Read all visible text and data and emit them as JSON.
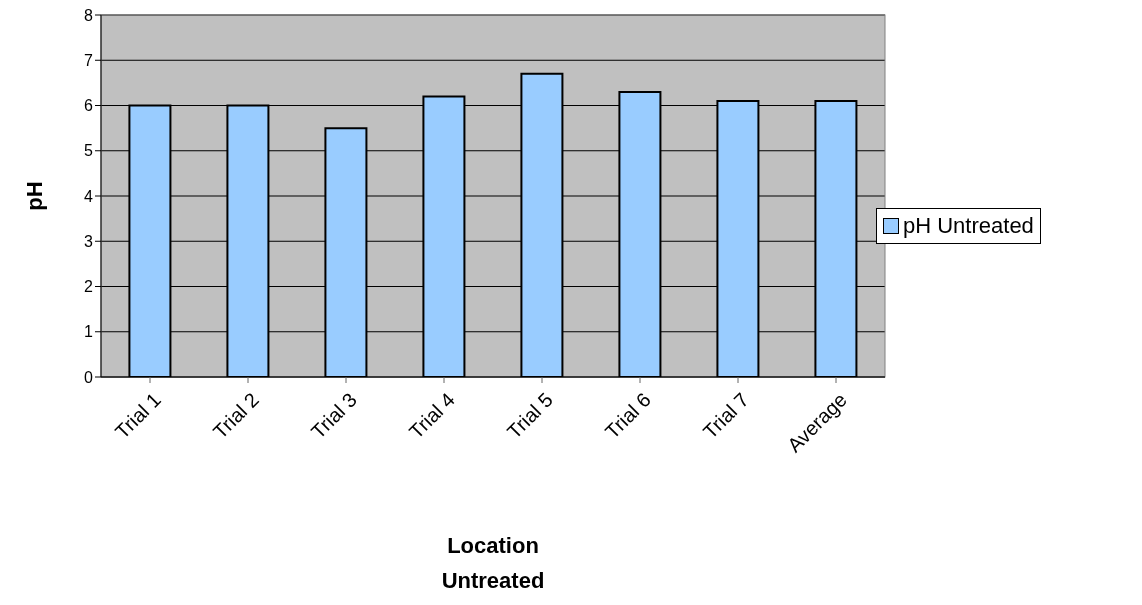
{
  "chart_data": {
    "type": "bar",
    "xlabel": "Location\nUntreated",
    "ylabel": "pH",
    "categories": [
      "Trial 1",
      "Trial 2",
      "Trial 3",
      "Trial 4",
      "Trial 5",
      "Trial 6",
      "Trial 7",
      "Average"
    ],
    "series": [
      {
        "name": "pH Untreated",
        "color": "#99ccff",
        "values": [
          6.0,
          6.0,
          5.5,
          6.2,
          6.7,
          6.3,
          6.1,
          6.1
        ]
      }
    ],
    "ylim": [
      0,
      8
    ],
    "yticks": [
      0,
      1,
      2,
      3,
      4,
      5,
      6,
      7,
      8
    ],
    "grid": "y",
    "legend": "right"
  }
}
